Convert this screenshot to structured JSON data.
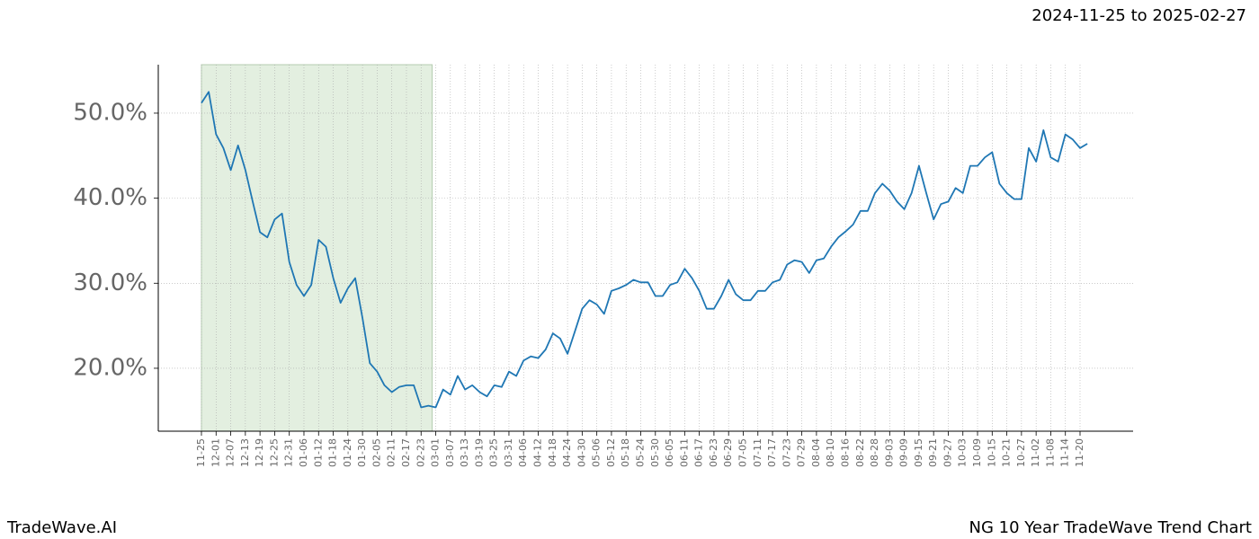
{
  "chart_data": {
    "type": "line",
    "title": "2024-11-25 to 2025-02-27",
    "brand": "TradeWave.AI",
    "caption": "NG 10 Year TradeWave Trend Chart",
    "color": "#1f77b4",
    "highlight": {
      "from": "11-25",
      "to": "03-01",
      "color": "#e3efe0"
    },
    "grid": true,
    "ylim": [
      12.6,
      55.7
    ],
    "yticks": [
      {
        "value": 20,
        "label": "20.0%"
      },
      {
        "value": 30,
        "label": "30.0%"
      },
      {
        "value": 40,
        "label": "40.0%"
      },
      {
        "value": 50,
        "label": "50.0%"
      }
    ],
    "categories": [
      "11-25",
      null,
      "12-01",
      null,
      "12-07",
      null,
      "12-13",
      null,
      "12-19",
      null,
      "12-25",
      null,
      "12-31",
      null,
      "01-06",
      null,
      "01-12",
      null,
      "01-18",
      null,
      "01-24",
      null,
      "01-30",
      null,
      "02-05",
      null,
      "02-11",
      null,
      "02-17",
      null,
      "02-23",
      null,
      "03-01",
      null,
      "03-07",
      null,
      "03-13",
      null,
      "03-19",
      null,
      "03-25",
      null,
      "03-31",
      null,
      "04-06",
      null,
      "04-12",
      null,
      "04-18",
      null,
      "04-24",
      null,
      "04-30",
      null,
      "05-06",
      null,
      "05-12",
      null,
      "05-18",
      null,
      "05-24",
      null,
      "05-30",
      null,
      "06-05",
      null,
      "06-11",
      null,
      "06-17",
      null,
      "06-23",
      null,
      "06-29",
      null,
      "07-05",
      null,
      "07-11",
      null,
      "07-17",
      null,
      "07-23",
      null,
      "07-29",
      null,
      "08-04",
      null,
      "08-10",
      null,
      "08-16",
      null,
      "08-22",
      null,
      "08-28",
      null,
      "09-03",
      null,
      "09-09",
      null,
      "09-15",
      null,
      "09-21",
      null,
      "09-27",
      null,
      "10-03",
      null,
      "10-09",
      null,
      "10-15",
      null,
      "10-21",
      null,
      "10-27",
      null,
      "11-02",
      null,
      "11-08",
      null,
      "11-14",
      null,
      "11-20",
      null
    ],
    "values": [
      51.2,
      52.5,
      47.5,
      45.9,
      43.3,
      46.2,
      43.3,
      39.6,
      36.0,
      35.4,
      37.5,
      38.2,
      32.5,
      29.8,
      28.5,
      29.8,
      35.1,
      34.3,
      30.6,
      27.7,
      29.4,
      30.6,
      25.9,
      20.6,
      19.6,
      18.0,
      17.2,
      17.8,
      18.0,
      18.0,
      15.4,
      15.6,
      15.4,
      17.5,
      16.9,
      19.1,
      17.5,
      18.0,
      17.2,
      16.7,
      18.0,
      17.8,
      19.6,
      19.1,
      20.9,
      21.4,
      21.2,
      22.2,
      24.1,
      23.5,
      21.7,
      24.3,
      27.0,
      28.0,
      27.5,
      26.4,
      29.1,
      29.4,
      29.8,
      30.4,
      30.1,
      30.1,
      28.5,
      28.5,
      29.8,
      30.1,
      31.7,
      30.6,
      29.1,
      27.0,
      27.0,
      28.5,
      30.4,
      28.7,
      28.0,
      28.0,
      29.1,
      29.1,
      30.1,
      30.4,
      32.2,
      32.7,
      32.5,
      31.2,
      32.7,
      32.9,
      34.3,
      35.4,
      36.1,
      36.9,
      38.5,
      38.5,
      40.6,
      41.7,
      40.9,
      39.6,
      38.7,
      40.6,
      43.8,
      40.6,
      37.5,
      39.3,
      39.6,
      41.2,
      40.6,
      43.8,
      43.8,
      44.8,
      45.4,
      41.7,
      40.6,
      39.9,
      39.9,
      45.9,
      44.3,
      48.0,
      44.8,
      44.3,
      47.5,
      46.9,
      45.9,
      46.4
    ]
  }
}
